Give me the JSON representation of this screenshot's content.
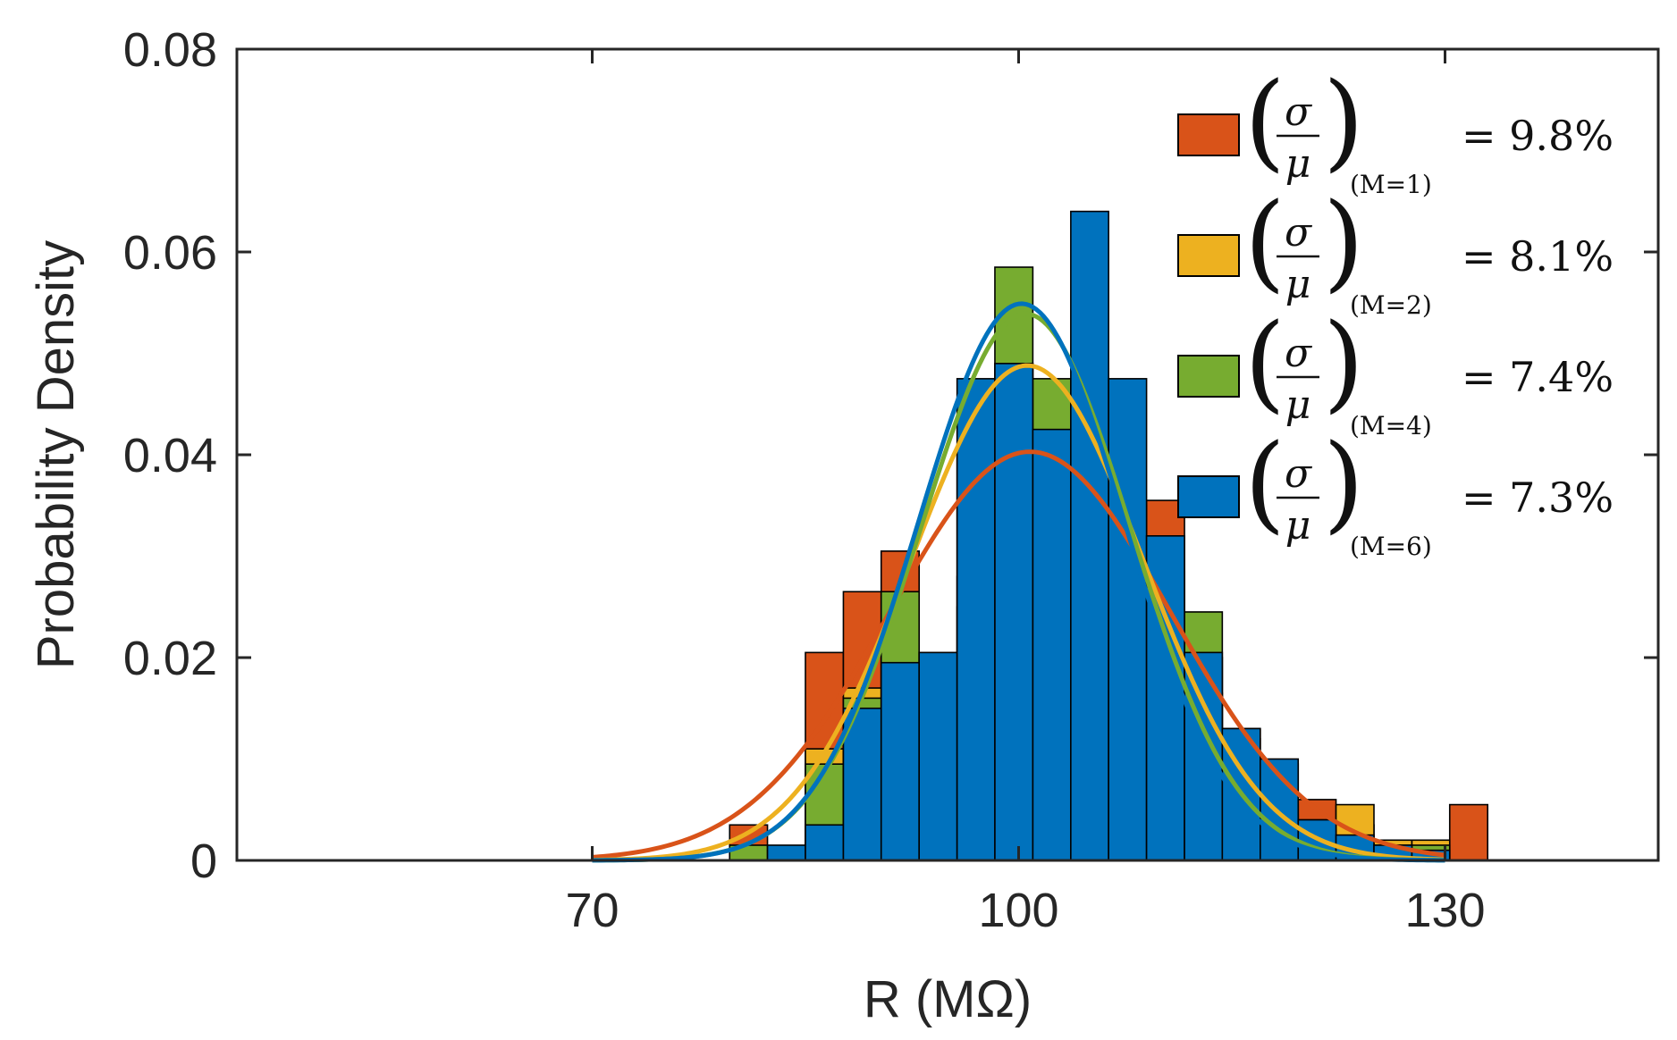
{
  "chart_data": {
    "type": "histogram",
    "xlabel": "R (MΩ)",
    "ylabel": "Probability Density",
    "xlim": [
      45,
      145
    ],
    "ylim": [
      0,
      0.08
    ],
    "x_ticks": [
      70,
      100,
      130
    ],
    "x_tick_labels": [
      "70",
      "100",
      "130"
    ],
    "y_ticks": [
      0,
      0.02,
      0.04,
      0.06,
      0.08
    ],
    "y_tick_labels": [
      "0",
      "0.02",
      "0.04",
      "0.06",
      "0.08"
    ],
    "bin_edges": [
      77,
      79.67,
      82.33,
      85,
      87.67,
      90.33,
      93,
      95.67,
      98.33,
      101,
      103.67,
      106.33,
      109,
      111.67,
      114.33,
      117,
      119.67,
      122.33,
      125,
      127.67,
      130.33,
      133
    ],
    "legend_position": "top-right",
    "fit_x_range": [
      70,
      130
    ],
    "series": [
      {
        "name": "M=1",
        "color": "#D95319",
        "legend_subscript": "(M=1)",
        "legend_value": "= 9.8%",
        "values": [
          0,
          0.0035,
          0,
          0.0205,
          0.0265,
          0.0305,
          0.02,
          0.028,
          0.022,
          0.024,
          0.029,
          0.021,
          0.0355,
          0.02,
          0.013,
          0.0095,
          0.006,
          0.0035,
          0,
          0,
          0.0055
        ],
        "fit_mean": 100.8,
        "fit_peak": 0.0403
      },
      {
        "name": "M=2",
        "color": "#EDB120",
        "legend_subscript": "(M=2)",
        "legend_value": "= 8.1%",
        "values": [
          0,
          0,
          0,
          0.011,
          0.017,
          0.02,
          0.0205,
          0.025,
          0.049,
          0.028,
          0.022,
          0.035,
          0.02,
          0.0165,
          0.012,
          0.0055,
          0.004,
          0.0055,
          0.002,
          0.002,
          0
        ],
        "fit_mean": 100.6,
        "fit_peak": 0.0488
      },
      {
        "name": "M=4",
        "color": "#77AC30",
        "legend_subscript": "(M=4)",
        "legend_value": "= 7.4%",
        "values": [
          0,
          0.0015,
          0,
          0.0095,
          0.016,
          0.0265,
          0.0205,
          0.04,
          0.0585,
          0.0475,
          0.042,
          0.032,
          0.0285,
          0.0245,
          0.0085,
          0.0045,
          0.003,
          0.0015,
          0.0015,
          0.0015,
          0
        ],
        "fit_mean": 100.5,
        "fit_peak": 0.0539
      },
      {
        "name": "M=6",
        "color": "#0072BD",
        "legend_subscript": "(M=6)",
        "legend_value": "= 7.3%",
        "values": [
          0,
          0,
          0.0015,
          0.0035,
          0.015,
          0.0195,
          0.0205,
          0.0475,
          0.049,
          0.0425,
          0.064,
          0.0475,
          0.032,
          0.0205,
          0.013,
          0.01,
          0.004,
          0.0025,
          0.0015,
          0.001,
          0
        ],
        "fit_mean": 100.2,
        "fit_peak": 0.0549
      }
    ]
  },
  "legend_fraction": {
    "numerator": "σ",
    "denominator": "μ"
  }
}
